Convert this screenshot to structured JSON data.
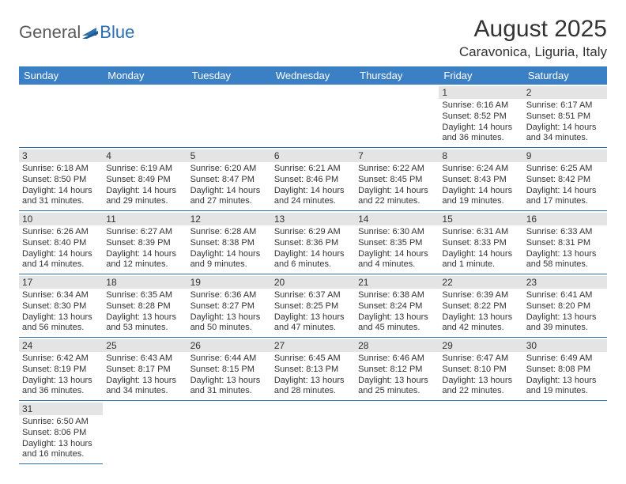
{
  "brand": {
    "part1": "General",
    "part2": "Blue"
  },
  "title": "August 2025",
  "location": "Caravonica, Liguria, Italy",
  "colors": {
    "header_bg": "#3b7fc4",
    "header_fg": "#ffffff",
    "row_divider": "#2b6fb0",
    "daynum_bg": "#e4e4e4",
    "text": "#333333",
    "brand_gray": "#5a5a5a",
    "brand_blue": "#2b6fb0"
  },
  "typography": {
    "title_fontsize": 30,
    "location_fontsize": 17,
    "dayheader_fontsize": 13,
    "cell_fontsize": 11
  },
  "day_headers": [
    "Sunday",
    "Monday",
    "Tuesday",
    "Wednesday",
    "Thursday",
    "Friday",
    "Saturday"
  ],
  "weeks": [
    [
      null,
      null,
      null,
      null,
      null,
      {
        "n": "1",
        "sr": "Sunrise: 6:16 AM",
        "ss": "Sunset: 8:52 PM",
        "d1": "Daylight: 14 hours",
        "d2": "and 36 minutes."
      },
      {
        "n": "2",
        "sr": "Sunrise: 6:17 AM",
        "ss": "Sunset: 8:51 PM",
        "d1": "Daylight: 14 hours",
        "d2": "and 34 minutes."
      }
    ],
    [
      {
        "n": "3",
        "sr": "Sunrise: 6:18 AM",
        "ss": "Sunset: 8:50 PM",
        "d1": "Daylight: 14 hours",
        "d2": "and 31 minutes."
      },
      {
        "n": "4",
        "sr": "Sunrise: 6:19 AM",
        "ss": "Sunset: 8:49 PM",
        "d1": "Daylight: 14 hours",
        "d2": "and 29 minutes."
      },
      {
        "n": "5",
        "sr": "Sunrise: 6:20 AM",
        "ss": "Sunset: 8:47 PM",
        "d1": "Daylight: 14 hours",
        "d2": "and 27 minutes."
      },
      {
        "n": "6",
        "sr": "Sunrise: 6:21 AM",
        "ss": "Sunset: 8:46 PM",
        "d1": "Daylight: 14 hours",
        "d2": "and 24 minutes."
      },
      {
        "n": "7",
        "sr": "Sunrise: 6:22 AM",
        "ss": "Sunset: 8:45 PM",
        "d1": "Daylight: 14 hours",
        "d2": "and 22 minutes."
      },
      {
        "n": "8",
        "sr": "Sunrise: 6:24 AM",
        "ss": "Sunset: 8:43 PM",
        "d1": "Daylight: 14 hours",
        "d2": "and 19 minutes."
      },
      {
        "n": "9",
        "sr": "Sunrise: 6:25 AM",
        "ss": "Sunset: 8:42 PM",
        "d1": "Daylight: 14 hours",
        "d2": "and 17 minutes."
      }
    ],
    [
      {
        "n": "10",
        "sr": "Sunrise: 6:26 AM",
        "ss": "Sunset: 8:40 PM",
        "d1": "Daylight: 14 hours",
        "d2": "and 14 minutes."
      },
      {
        "n": "11",
        "sr": "Sunrise: 6:27 AM",
        "ss": "Sunset: 8:39 PM",
        "d1": "Daylight: 14 hours",
        "d2": "and 12 minutes."
      },
      {
        "n": "12",
        "sr": "Sunrise: 6:28 AM",
        "ss": "Sunset: 8:38 PM",
        "d1": "Daylight: 14 hours",
        "d2": "and 9 minutes."
      },
      {
        "n": "13",
        "sr": "Sunrise: 6:29 AM",
        "ss": "Sunset: 8:36 PM",
        "d1": "Daylight: 14 hours",
        "d2": "and 6 minutes."
      },
      {
        "n": "14",
        "sr": "Sunrise: 6:30 AM",
        "ss": "Sunset: 8:35 PM",
        "d1": "Daylight: 14 hours",
        "d2": "and 4 minutes."
      },
      {
        "n": "15",
        "sr": "Sunrise: 6:31 AM",
        "ss": "Sunset: 8:33 PM",
        "d1": "Daylight: 14 hours",
        "d2": "and 1 minute."
      },
      {
        "n": "16",
        "sr": "Sunrise: 6:33 AM",
        "ss": "Sunset: 8:31 PM",
        "d1": "Daylight: 13 hours",
        "d2": "and 58 minutes."
      }
    ],
    [
      {
        "n": "17",
        "sr": "Sunrise: 6:34 AM",
        "ss": "Sunset: 8:30 PM",
        "d1": "Daylight: 13 hours",
        "d2": "and 56 minutes."
      },
      {
        "n": "18",
        "sr": "Sunrise: 6:35 AM",
        "ss": "Sunset: 8:28 PM",
        "d1": "Daylight: 13 hours",
        "d2": "and 53 minutes."
      },
      {
        "n": "19",
        "sr": "Sunrise: 6:36 AM",
        "ss": "Sunset: 8:27 PM",
        "d1": "Daylight: 13 hours",
        "d2": "and 50 minutes."
      },
      {
        "n": "20",
        "sr": "Sunrise: 6:37 AM",
        "ss": "Sunset: 8:25 PM",
        "d1": "Daylight: 13 hours",
        "d2": "and 47 minutes."
      },
      {
        "n": "21",
        "sr": "Sunrise: 6:38 AM",
        "ss": "Sunset: 8:24 PM",
        "d1": "Daylight: 13 hours",
        "d2": "and 45 minutes."
      },
      {
        "n": "22",
        "sr": "Sunrise: 6:39 AM",
        "ss": "Sunset: 8:22 PM",
        "d1": "Daylight: 13 hours",
        "d2": "and 42 minutes."
      },
      {
        "n": "23",
        "sr": "Sunrise: 6:41 AM",
        "ss": "Sunset: 8:20 PM",
        "d1": "Daylight: 13 hours",
        "d2": "and 39 minutes."
      }
    ],
    [
      {
        "n": "24",
        "sr": "Sunrise: 6:42 AM",
        "ss": "Sunset: 8:19 PM",
        "d1": "Daylight: 13 hours",
        "d2": "and 36 minutes."
      },
      {
        "n": "25",
        "sr": "Sunrise: 6:43 AM",
        "ss": "Sunset: 8:17 PM",
        "d1": "Daylight: 13 hours",
        "d2": "and 34 minutes."
      },
      {
        "n": "26",
        "sr": "Sunrise: 6:44 AM",
        "ss": "Sunset: 8:15 PM",
        "d1": "Daylight: 13 hours",
        "d2": "and 31 minutes."
      },
      {
        "n": "27",
        "sr": "Sunrise: 6:45 AM",
        "ss": "Sunset: 8:13 PM",
        "d1": "Daylight: 13 hours",
        "d2": "and 28 minutes."
      },
      {
        "n": "28",
        "sr": "Sunrise: 6:46 AM",
        "ss": "Sunset: 8:12 PM",
        "d1": "Daylight: 13 hours",
        "d2": "and 25 minutes."
      },
      {
        "n": "29",
        "sr": "Sunrise: 6:47 AM",
        "ss": "Sunset: 8:10 PM",
        "d1": "Daylight: 13 hours",
        "d2": "and 22 minutes."
      },
      {
        "n": "30",
        "sr": "Sunrise: 6:49 AM",
        "ss": "Sunset: 8:08 PM",
        "d1": "Daylight: 13 hours",
        "d2": "and 19 minutes."
      }
    ],
    [
      {
        "n": "31",
        "sr": "Sunrise: 6:50 AM",
        "ss": "Sunset: 8:06 PM",
        "d1": "Daylight: 13 hours",
        "d2": "and 16 minutes."
      },
      null,
      null,
      null,
      null,
      null,
      null
    ]
  ]
}
